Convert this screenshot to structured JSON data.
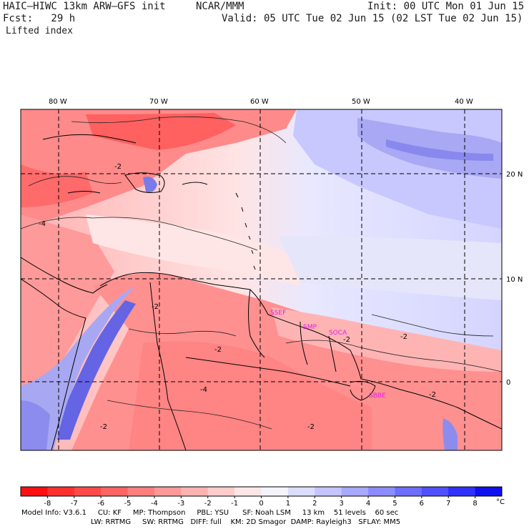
{
  "header": {
    "model": "HAIC–HIWC 13km ARW–GFS init",
    "org": "NCAR/MMM",
    "init": "Init: 00 UTC Mon 01 Jun 15",
    "fcst": "Fcst:   29 h",
    "valid": "Valid: 05 UTC Tue 02 Jun 15 (02 LST Tue 02 Jun 15)",
    "field": "Lifted index"
  },
  "map": {
    "lon_labels": [
      "80 W",
      "70 W",
      "60 W",
      "50 W",
      "40 W"
    ],
    "lat_labels": [
      "20 N",
      "10 N",
      "0"
    ],
    "contour_labels": [
      "-2",
      "-4",
      "-2",
      "-2",
      "-2",
      "-2",
      "-2",
      "-4",
      "-2",
      "-2"
    ],
    "stations": [
      "SSEF",
      "SMP",
      "SOCA",
      "SBBE"
    ],
    "station_color": "#e020e0"
  },
  "colorbar": {
    "ticks": [
      "-8",
      "-7",
      "-6",
      "-5",
      "-4",
      "-3",
      "-2",
      "-1",
      "0",
      "1",
      "2",
      "3",
      "4",
      "5",
      "6",
      "7",
      "8"
    ],
    "unit": "°C",
    "colors": [
      "#ff1010",
      "#ff3030",
      "#ff4a4a",
      "#ff6464",
      "#ff7e7e",
      "#ff9898",
      "#ffb2b2",
      "#ffcccc",
      "#ffe6e6",
      "#f4f4ff",
      "#dcdcff",
      "#c4c4ff",
      "#a8a8ff",
      "#8c8cff",
      "#6e6eff",
      "#5050ff",
      "#3030ff",
      "#1010ee"
    ]
  },
  "footer": {
    "line1": "Model Info: V3.6.1     CU: KF     MP: Thompson     PBL: YSU      SF: Noah LSM     13 km    51 levels    60 sec",
    "line2": "LW: RRTMG     SW: RRTMG   DIFF: full    KM: 2D Smagor  DAMP: Rayleigh3   SFLAY: MM5"
  }
}
